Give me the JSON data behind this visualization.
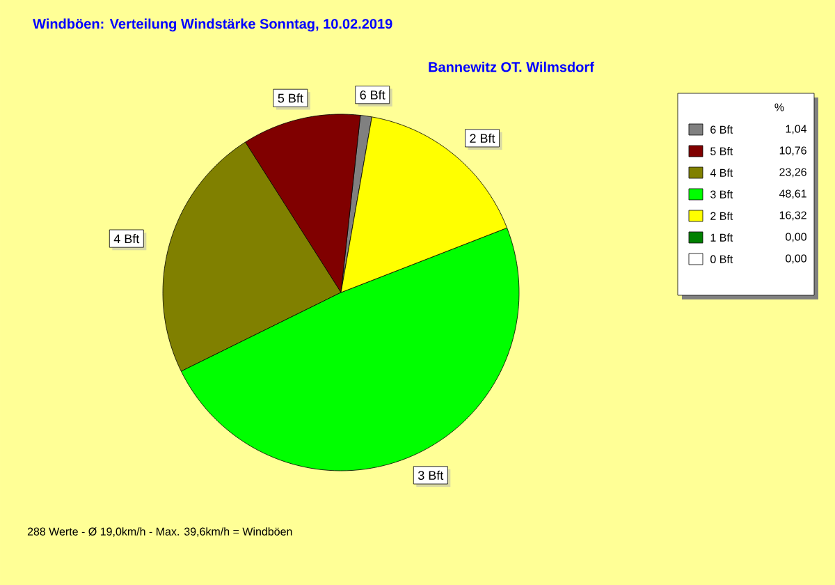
{
  "chart_data": {
    "type": "pie",
    "title": "Windböen: Verteilung Windstärke  Sonntag, 10.02.2019",
    "subtitle": "Bannewitz OT. Wilmsdorf",
    "categories": [
      "6 Bft",
      "5 Bft",
      "4 Bft",
      "3 Bft",
      "2 Bft",
      "1 Bft",
      "0 Bft"
    ],
    "values": [
      1.04,
      10.76,
      23.26,
      48.61,
      16.32,
      0.0,
      0.0
    ],
    "value_labels": [
      "1,04",
      "10,76",
      "23,26",
      "48,61",
      "16,32",
      "0,00",
      "0,00"
    ],
    "colors": [
      "#808080",
      "#800000",
      "#808000",
      "#00ff00",
      "#ffff00",
      "#008000",
      "#ffffff"
    ],
    "legend_title": "%",
    "legend": "top right",
    "annotations": [
      "288 Werte   -   Ø 19,0km/h   -   Max. 39,6km/h = Windböen"
    ]
  }
}
